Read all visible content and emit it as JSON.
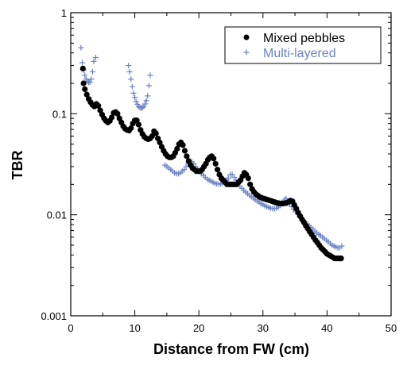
{
  "chart_data": {
    "type": "scatter",
    "title": "",
    "xlabel": "Distance from FW (cm)",
    "ylabel": "TBR",
    "xlim": [
      0,
      50
    ],
    "ylim": [
      0.001,
      1
    ],
    "yscale": "log",
    "x_ticks": [
      "0",
      "10",
      "20",
      "30",
      "40",
      "50"
    ],
    "y_ticks": [
      "0.001",
      "0.01",
      "0.1",
      "1"
    ],
    "grid": false,
    "legend_position": "top-right",
    "series": [
      {
        "name": "Mixed pebbles",
        "marker": "filled-circle",
        "color": "#000000",
        "points": [
          [
            1.9,
            0.28
          ],
          [
            2.0,
            0.2
          ],
          [
            2.2,
            0.175
          ],
          [
            2.5,
            0.155
          ],
          [
            2.8,
            0.14
          ],
          [
            3.1,
            0.13
          ],
          [
            3.4,
            0.122
          ],
          [
            3.7,
            0.118
          ],
          [
            4.0,
            0.125
          ],
          [
            4.3,
            0.12
          ],
          [
            4.6,
            0.108
          ],
          [
            4.9,
            0.098
          ],
          [
            5.2,
            0.09
          ],
          [
            5.5,
            0.085
          ],
          [
            5.8,
            0.082
          ],
          [
            6.1,
            0.085
          ],
          [
            6.4,
            0.092
          ],
          [
            6.7,
            0.102
          ],
          [
            7.0,
            0.104
          ],
          [
            7.3,
            0.1
          ],
          [
            7.6,
            0.09
          ],
          [
            7.9,
            0.082
          ],
          [
            8.2,
            0.075
          ],
          [
            8.5,
            0.071
          ],
          [
            8.8,
            0.069
          ],
          [
            9.1,
            0.068
          ],
          [
            9.4,
            0.072
          ],
          [
            9.7,
            0.08
          ],
          [
            10.0,
            0.086
          ],
          [
            10.3,
            0.086
          ],
          [
            10.6,
            0.078
          ],
          [
            10.9,
            0.069
          ],
          [
            11.2,
            0.063
          ],
          [
            11.5,
            0.059
          ],
          [
            11.8,
            0.057
          ],
          [
            12.1,
            0.056
          ],
          [
            12.4,
            0.057
          ],
          [
            12.7,
            0.06
          ],
          [
            13.0,
            0.067
          ],
          [
            13.3,
            0.064
          ],
          [
            13.6,
            0.057
          ],
          [
            13.9,
            0.052
          ],
          [
            14.2,
            0.047
          ],
          [
            14.5,
            0.043
          ],
          [
            14.8,
            0.04
          ],
          [
            15.1,
            0.038
          ],
          [
            15.4,
            0.037
          ],
          [
            15.7,
            0.037
          ],
          [
            16.0,
            0.038
          ],
          [
            16.3,
            0.041
          ],
          [
            16.6,
            0.045
          ],
          [
            16.9,
            0.05
          ],
          [
            17.2,
            0.052
          ],
          [
            17.5,
            0.049
          ],
          [
            17.8,
            0.043
          ],
          [
            18.1,
            0.038
          ],
          [
            18.4,
            0.034
          ],
          [
            18.7,
            0.031
          ],
          [
            19.0,
            0.029
          ],
          [
            19.3,
            0.028
          ],
          [
            19.6,
            0.027
          ],
          [
            19.9,
            0.027
          ],
          [
            20.2,
            0.027
          ],
          [
            20.5,
            0.028
          ],
          [
            20.8,
            0.03
          ],
          [
            21.1,
            0.032
          ],
          [
            21.4,
            0.035
          ],
          [
            21.7,
            0.037
          ],
          [
            22.0,
            0.038
          ],
          [
            22.3,
            0.036
          ],
          [
            22.6,
            0.032
          ],
          [
            22.9,
            0.028
          ],
          [
            23.2,
            0.025
          ],
          [
            23.5,
            0.023
          ],
          [
            23.8,
            0.022
          ],
          [
            24.1,
            0.021
          ],
          [
            24.4,
            0.02
          ],
          [
            24.7,
            0.02
          ],
          [
            25.0,
            0.02
          ],
          [
            25.3,
            0.02
          ],
          [
            25.6,
            0.02
          ],
          [
            25.9,
            0.02
          ],
          [
            26.2,
            0.021
          ],
          [
            26.5,
            0.022
          ],
          [
            26.8,
            0.024
          ],
          [
            27.1,
            0.026
          ],
          [
            27.4,
            0.025
          ],
          [
            27.7,
            0.023
          ],
          [
            28.0,
            0.02
          ],
          [
            28.3,
            0.018
          ],
          [
            28.6,
            0.0168
          ],
          [
            28.9,
            0.016
          ],
          [
            29.2,
            0.0155
          ],
          [
            29.5,
            0.015
          ],
          [
            29.8,
            0.0147
          ],
          [
            30.1,
            0.0145
          ],
          [
            30.4,
            0.0143
          ],
          [
            30.7,
            0.0141
          ],
          [
            31.0,
            0.0139
          ],
          [
            31.3,
            0.0137
          ],
          [
            31.6,
            0.0135
          ],
          [
            31.9,
            0.0133
          ],
          [
            32.2,
            0.0131
          ],
          [
            32.5,
            0.013
          ],
          [
            32.8,
            0.0129
          ],
          [
            33.1,
            0.0129
          ],
          [
            33.4,
            0.013
          ],
          [
            33.7,
            0.0131
          ],
          [
            34.0,
            0.0134
          ],
          [
            34.3,
            0.0138
          ],
          [
            34.6,
            0.0136
          ],
          [
            34.9,
            0.0125
          ],
          [
            35.2,
            0.0115
          ],
          [
            35.5,
            0.0105
          ],
          [
            35.8,
            0.0097
          ],
          [
            36.1,
            0.009
          ],
          [
            36.4,
            0.0084
          ],
          [
            36.7,
            0.0078
          ],
          [
            37.0,
            0.0073
          ],
          [
            37.3,
            0.0068
          ],
          [
            37.6,
            0.0064
          ],
          [
            37.9,
            0.006
          ],
          [
            38.2,
            0.0056
          ],
          [
            38.5,
            0.0053
          ],
          [
            38.8,
            0.005
          ],
          [
            39.1,
            0.0047
          ],
          [
            39.4,
            0.0045
          ],
          [
            39.7,
            0.0043
          ],
          [
            40.0,
            0.0041
          ],
          [
            40.3,
            0.004
          ],
          [
            40.6,
            0.0039
          ],
          [
            40.9,
            0.0038
          ],
          [
            41.2,
            0.0037
          ],
          [
            41.5,
            0.0037
          ],
          [
            41.8,
            0.0037
          ],
          [
            42.0,
            0.0037
          ],
          [
            42.2,
            0.0037
          ]
        ]
      },
      {
        "name": "Multi-layered",
        "marker": "plus",
        "color": "#6b82c3",
        "points": [
          [
            1.6,
            0.45
          ],
          [
            1.8,
            0.32
          ],
          [
            2.0,
            0.27
          ],
          [
            2.2,
            0.24
          ],
          [
            2.4,
            0.22
          ],
          [
            2.6,
            0.21
          ],
          [
            2.8,
            0.205
          ],
          [
            3.0,
            0.205
          ],
          [
            3.2,
            0.22
          ],
          [
            3.4,
            0.26
          ],
          [
            3.6,
            0.33
          ],
          [
            3.9,
            0.36
          ],
          [
            9.0,
            0.3
          ],
          [
            9.2,
            0.26
          ],
          [
            9.4,
            0.22
          ],
          [
            9.6,
            0.185
          ],
          [
            9.8,
            0.16
          ],
          [
            10.0,
            0.145
          ],
          [
            10.2,
            0.132
          ],
          [
            10.4,
            0.124
          ],
          [
            10.6,
            0.118
          ],
          [
            10.8,
            0.115
          ],
          [
            11.0,
            0.114
          ],
          [
            11.2,
            0.115
          ],
          [
            11.4,
            0.118
          ],
          [
            11.6,
            0.125
          ],
          [
            11.8,
            0.135
          ],
          [
            12.0,
            0.15
          ],
          [
            12.2,
            0.19
          ],
          [
            12.4,
            0.24
          ],
          [
            14.7,
            0.031
          ],
          [
            15.0,
            0.03
          ],
          [
            15.3,
            0.029
          ],
          [
            15.6,
            0.028
          ],
          [
            15.9,
            0.027
          ],
          [
            16.2,
            0.026
          ],
          [
            16.5,
            0.0255
          ],
          [
            16.8,
            0.0255
          ],
          [
            17.1,
            0.026
          ],
          [
            17.4,
            0.027
          ],
          [
            17.7,
            0.028
          ],
          [
            18.0,
            0.03
          ],
          [
            18.3,
            0.032
          ],
          [
            18.6,
            0.034
          ],
          [
            18.9,
            0.0335
          ],
          [
            19.2,
            0.032
          ],
          [
            19.5,
            0.03
          ],
          [
            19.8,
            0.028
          ],
          [
            20.1,
            0.027
          ],
          [
            20.4,
            0.0255
          ],
          [
            20.7,
            0.0245
          ],
          [
            21.0,
            0.0235
          ],
          [
            21.3,
            0.0225
          ],
          [
            21.6,
            0.022
          ],
          [
            21.9,
            0.0215
          ],
          [
            22.2,
            0.021
          ],
          [
            22.5,
            0.0205
          ],
          [
            22.8,
            0.0202
          ],
          [
            23.1,
            0.0201
          ],
          [
            23.4,
            0.0202
          ],
          [
            23.7,
            0.0205
          ],
          [
            24.0,
            0.021
          ],
          [
            24.3,
            0.022
          ],
          [
            24.6,
            0.023
          ],
          [
            24.9,
            0.025
          ],
          [
            25.2,
            0.025
          ],
          [
            25.5,
            0.0235
          ],
          [
            25.8,
            0.022
          ],
          [
            26.1,
            0.0205
          ],
          [
            26.4,
            0.0193
          ],
          [
            26.7,
            0.0183
          ],
          [
            27.0,
            0.0175
          ],
          [
            27.3,
            0.0168
          ],
          [
            27.6,
            0.0162
          ],
          [
            27.9,
            0.0156
          ],
          [
            28.2,
            0.0151
          ],
          [
            28.5,
            0.0146
          ],
          [
            28.8,
            0.0141
          ],
          [
            29.1,
            0.0137
          ],
          [
            29.4,
            0.0133
          ],
          [
            29.7,
            0.0129
          ],
          [
            30.0,
            0.0126
          ],
          [
            30.3,
            0.0123
          ],
          [
            30.6,
            0.012
          ],
          [
            30.9,
            0.0118
          ],
          [
            31.2,
            0.0116
          ],
          [
            31.5,
            0.0115
          ],
          [
            31.8,
            0.0115
          ],
          [
            32.1,
            0.0116
          ],
          [
            32.4,
            0.0119
          ],
          [
            32.7,
            0.0124
          ],
          [
            33.0,
            0.0132
          ],
          [
            33.3,
            0.014
          ],
          [
            33.6,
            0.0145
          ],
          [
            33.9,
            0.0138
          ],
          [
            34.2,
            0.0128
          ],
          [
            34.5,
            0.012
          ],
          [
            34.8,
            0.0113
          ],
          [
            35.1,
            0.0107
          ],
          [
            35.4,
            0.0102
          ],
          [
            35.7,
            0.0097
          ],
          [
            36.0,
            0.0093
          ],
          [
            36.3,
            0.0089
          ],
          [
            36.6,
            0.0085
          ],
          [
            36.9,
            0.0081
          ],
          [
            37.2,
            0.0078
          ],
          [
            37.5,
            0.0075
          ],
          [
            37.8,
            0.0072
          ],
          [
            38.1,
            0.0069
          ],
          [
            38.4,
            0.0066
          ],
          [
            38.7,
            0.0064
          ],
          [
            39.0,
            0.0062
          ],
          [
            39.3,
            0.006
          ],
          [
            39.6,
            0.0058
          ],
          [
            39.9,
            0.0056
          ],
          [
            40.2,
            0.0054
          ],
          [
            40.5,
            0.0052
          ],
          [
            40.8,
            0.005
          ],
          [
            41.1,
            0.0049
          ],
          [
            41.4,
            0.0048
          ],
          [
            41.7,
            0.0047
          ],
          [
            42.0,
            0.0047
          ],
          [
            42.3,
            0.0049
          ]
        ]
      }
    ]
  }
}
